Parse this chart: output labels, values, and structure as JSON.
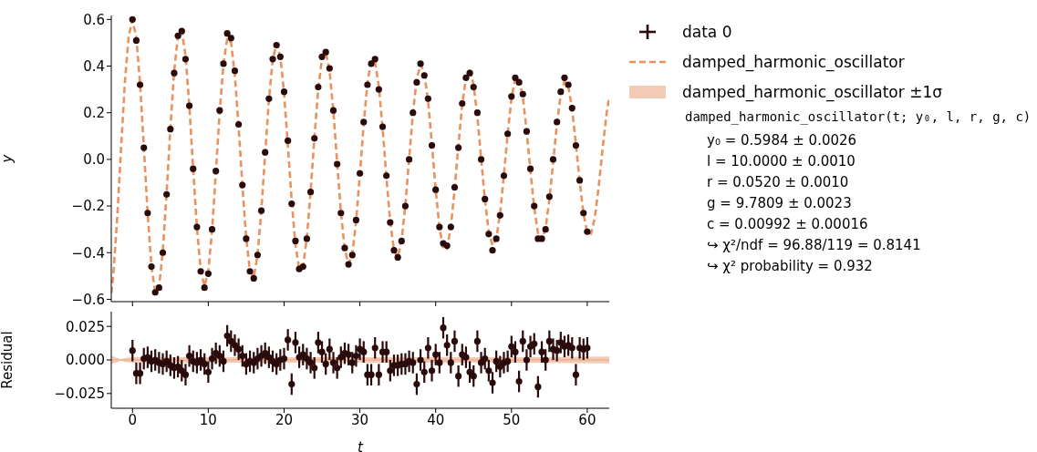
{
  "chart_data": [
    {
      "type": "scatter",
      "ylabel": "y",
      "xlim": [
        -2.8,
        62.9
      ],
      "ylim": [
        -0.61,
        0.617
      ],
      "xticks": [
        0,
        10,
        20,
        30,
        40,
        50,
        60
      ],
      "yticks": [
        {
          "value": -0.6,
          "label": "−0.6"
        },
        {
          "value": -0.4,
          "label": "−0.4"
        },
        {
          "value": -0.2,
          "label": "−0.2"
        },
        {
          "value": 0,
          "label": "0.0"
        },
        0.2,
        0.4,
        0.6
      ],
      "tick_labels": "y",
      "legend": "right",
      "x": [
        0,
        0.5,
        1,
        1.5,
        2,
        2.5,
        3,
        3.5,
        4,
        4.5,
        5,
        5.5,
        6,
        6.5,
        7,
        7.5,
        8,
        8.5,
        9,
        9.5,
        10,
        10.5,
        11,
        11.5,
        12,
        12.5,
        13,
        13.5,
        14,
        14.5,
        15,
        15.5,
        16,
        16.5,
        17,
        17.5,
        18,
        18.5,
        19,
        19.5,
        20,
        20.5,
        21,
        21.5,
        22,
        22.5,
        23,
        23.5,
        24,
        24.5,
        25,
        25.5,
        26,
        26.5,
        27,
        27.5,
        28,
        28.5,
        29,
        29.5,
        30,
        30.5,
        31,
        31.5,
        32,
        32.5,
        33,
        33.5,
        34,
        34.5,
        35,
        35.5,
        36,
        36.5,
        37,
        37.5,
        38,
        38.5,
        39,
        39.5,
        40,
        40.5,
        41,
        41.5,
        42,
        42.5,
        43,
        43.5,
        44,
        44.5,
        45,
        45.5,
        46,
        46.5,
        47,
        47.5,
        48,
        48.5,
        49,
        49.5,
        50,
        50.5,
        51,
        51.5,
        52,
        52.5,
        53,
        53.5,
        54,
        54.5,
        55,
        55.5,
        56,
        56.5,
        57,
        57.5,
        58,
        58.5,
        59,
        59.5,
        60
      ],
      "series": [
        {
          "name": "data 0",
          "marker": "circle",
          "color": "#2a0a0a",
          "values": [
            0.6,
            0.51,
            0.32,
            0.05,
            -0.23,
            -0.46,
            -0.57,
            -0.55,
            -0.4,
            -0.15,
            0.13,
            0.37,
            0.53,
            0.55,
            0.43,
            0.23,
            -0.04,
            -0.29,
            -0.48,
            -0.55,
            -0.49,
            -0.3,
            -0.05,
            0.21,
            0.41,
            0.54,
            0.52,
            0.38,
            0.15,
            -0.11,
            -0.34,
            -0.48,
            -0.51,
            -0.41,
            -0.22,
            0.03,
            0.26,
            0.43,
            0.49,
            0.44,
            0.29,
            0.08,
            -0.19,
            -0.35,
            -0.47,
            -0.46,
            -0.34,
            -0.14,
            0.09,
            0.31,
            0.44,
            0.46,
            0.39,
            0.21,
            -0.02,
            -0.23,
            -0.38,
            -0.45,
            -0.41,
            -0.26,
            -0.06,
            0.16,
            0.32,
            0.41,
            0.43,
            0.3,
            0.14,
            -0.07,
            -0.27,
            -0.39,
            -0.42,
            -0.35,
            -0.2,
            0.0,
            0.2,
            0.33,
            0.41,
            0.36,
            0.26,
            0.06,
            -0.13,
            -0.29,
            -0.36,
            -0.37,
            -0.29,
            -0.12,
            0.05,
            0.24,
            0.35,
            0.37,
            0.31,
            0.2,
            0.0,
            -0.17,
            -0.32,
            -0.39,
            -0.34,
            -0.24,
            -0.07,
            0.11,
            0.27,
            0.35,
            0.33,
            0.28,
            0.12,
            -0.04,
            -0.2,
            -0.34,
            -0.34,
            -0.3,
            -0.16,
            0.0,
            0.16,
            0.29,
            0.35,
            0.32,
            0.22,
            0.06,
            -0.09,
            -0.23,
            -0.31
          ]
        },
        {
          "name": "damped_harmonic_oscillator",
          "type": "line",
          "line_style": "dashed",
          "color": "#e8935e",
          "x": [
            -2.8,
            -2.5,
            -2,
            -1.5,
            -1,
            -0.5,
            0,
            0.5,
            1,
            1.5,
            2,
            2.5,
            3,
            3.5,
            4,
            4.5,
            5,
            5.5,
            6,
            6.5,
            7,
            7.5,
            8,
            8.5,
            9,
            9.5,
            10,
            10.5,
            11,
            11.5,
            12,
            12.5,
            13,
            13.5,
            14,
            14.5,
            15,
            15.5,
            16,
            16.5,
            17,
            17.5,
            18,
            18.5,
            19,
            19.5,
            20,
            20.5,
            21,
            21.5,
            22,
            22.5,
            23,
            23.5,
            24,
            24.5,
            25,
            25.5,
            26,
            26.5,
            27,
            27.5,
            28,
            28.5,
            29,
            29.5,
            30,
            30.5,
            31,
            31.5,
            32,
            32.5,
            33,
            33.5,
            34,
            34.5,
            35,
            35.5,
            36,
            36.5,
            37,
            37.5,
            38,
            38.5,
            39,
            39.5,
            40,
            40.5,
            41,
            41.5,
            42,
            42.5,
            43,
            43.5,
            44,
            44.5,
            45,
            45.5,
            46,
            46.5,
            47,
            47.5,
            48,
            48.5,
            49,
            49.5,
            50,
            50.5,
            51,
            51.5,
            52,
            52.5,
            53,
            53.5,
            54,
            54.5,
            55,
            55.5,
            56,
            56.5,
            57,
            57.5,
            58,
            58.5,
            59,
            59.5,
            60,
            60.5,
            61,
            61.5,
            62,
            62.5,
            62.9
          ],
          "values": [
            -0.574,
            -0.482,
            -0.243,
            0.052,
            0.332,
            0.529,
            0.598,
            0.524,
            0.325,
            0.05,
            -0.233,
            -0.458,
            -0.571,
            -0.548,
            -0.393,
            -0.145,
            0.134,
            0.379,
            0.53,
            0.553,
            0.445,
            0.23,
            -0.037,
            -0.292,
            -0.475,
            -0.544,
            -0.48,
            -0.303,
            -0.056,
            0.202,
            0.41,
            0.518,
            0.501,
            0.364,
            0.142,
            -0.112,
            -0.336,
            -0.479,
            -0.505,
            -0.411,
            -0.219,
            0.023,
            0.257,
            0.428,
            0.495,
            0.442,
            0.284,
            0.06,
            -0.176,
            -0.367,
            -0.47,
            -0.459,
            -0.337,
            -0.138,
            0.093,
            0.299,
            0.432,
            0.461,
            0.379,
            0.207,
            -0.012,
            -0.227,
            -0.385,
            -0.449,
            -0.407,
            -0.266,
            -0.064,
            0.151,
            0.328,
            0.425,
            0.419,
            0.313,
            0.133,
            -0.076,
            -0.266,
            -0.389,
            -0.419,
            -0.349,
            -0.196,
            0.003,
            0.198,
            0.344,
            0.407,
            0.371,
            0.248,
            0.066,
            -0.13,
            -0.292,
            -0.383,
            -0.383,
            -0.288,
            -0.129,
            0.061,
            0.235,
            0.35,
            0.381,
            0.321,
            0.184,
            0.005,
            -0.174,
            -0.309,
            -0.369,
            -0.341,
            -0.231,
            -0.067,
            0.111,
            0.261,
            0.347,
            0.349,
            0.268,
            0.123,
            -0.049,
            -0.208,
            -0.316,
            -0.347,
            -0.295,
            -0.174,
            -0.011,
            0.152,
            0.277,
            0.335,
            0.312,
            0.215,
            0.067,
            -0.095,
            -0.233,
            -0.314,
            -0.319,
            -0.248,
            -0.119,
            0.038,
            0.185,
            0.27
          ]
        }
      ],
      "annotations": [
        "damped_harmonic_oscillator(t; y₀, l, r, g, c)",
        "y₀ = 0.5984 ± 0.0026",
        "l = 10.0000 ± 0.0010",
        "r = 0.0520 ± 0.0010",
        "g = 9.7809 ± 0.0023",
        "c = 0.00992 ± 0.00016",
        "↪ χ²/ndf = 96.88/119 = 0.8141",
        "↪ χ² probability = 0.932"
      ]
    },
    {
      "type": "scatter",
      "xlabel": "t",
      "ylabel": "Residual",
      "xlim": [
        -2.8,
        62.9
      ],
      "ylim": [
        -0.036,
        0.036
      ],
      "xticks": [
        0,
        10,
        20,
        30,
        40,
        50,
        60
      ],
      "yticks": [
        {
          "value": -0.025,
          "label": "−0.025"
        },
        {
          "value": 0,
          "label": "0.000"
        },
        0.025
      ],
      "x": [
        0,
        0.5,
        1,
        1.5,
        2,
        2.5,
        3,
        3.5,
        4,
        4.5,
        5,
        5.5,
        6,
        6.5,
        7,
        7.5,
        8,
        8.5,
        9,
        9.5,
        10,
        10.5,
        11,
        11.5,
        12,
        12.5,
        13,
        13.5,
        14,
        14.5,
        15,
        15.5,
        16,
        16.5,
        17,
        17.5,
        18,
        18.5,
        19,
        19.5,
        20,
        20.5,
        21,
        21.5,
        22,
        22.5,
        23,
        23.5,
        24,
        24.5,
        25,
        25.5,
        26,
        26.5,
        27,
        27.5,
        28,
        28.5,
        29,
        29.5,
        30,
        30.5,
        31,
        31.5,
        32,
        32.5,
        33,
        33.5,
        34,
        34.5,
        35,
        35.5,
        36,
        36.5,
        37,
        37.5,
        38,
        38.5,
        39,
        39.5,
        40,
        40.5,
        41,
        41.5,
        42,
        42.5,
        43,
        43.5,
        44,
        44.5,
        45,
        45.5,
        46,
        46.5,
        47,
        47.5,
        48,
        48.5,
        49,
        49.5,
        50,
        50.5,
        51,
        51.5,
        52,
        52.5,
        53,
        53.5,
        54,
        54.5,
        55,
        55.5,
        56,
        56.5,
        57,
        57.5,
        58,
        58.5,
        59,
        59.5,
        60
      ],
      "series": [
        {
          "name": "damped_harmonic_oscillator ±1σ",
          "type": "line",
          "color": "#eba782",
          "x": [
            -2.8,
            -2,
            -1.5,
            -1,
            0,
            10,
            30,
            50,
            62.9
          ],
          "values": [
            0,
            0,
            0,
            0,
            0,
            0,
            0,
            0,
            0
          ],
          "lower": [
            -0.003,
            -0.0015,
            -0.0005,
            -0.0015,
            -0.002,
            -0.002,
            -0.002,
            -0.002,
            -0.0025
          ],
          "upper": [
            0.003,
            0.0015,
            0.0005,
            0.0015,
            0.002,
            0.002,
            0.002,
            0.002,
            0.0025
          ]
        },
        {
          "marker": "circle",
          "color": "#2a0a0a",
          "values": [
            0.007,
            -0.01,
            -0.01,
            0.001,
            0.002,
            -0.001,
            0.0,
            -0.002,
            -0.003,
            -0.001,
            -0.004,
            -0.006,
            -0.005,
            -0.008,
            -0.011,
            0.003,
            -0.001,
            -0.002,
            0.0,
            -0.003,
            -0.009,
            0.001,
            0.005,
            0.003,
            -0.001,
            0.018,
            0.014,
            0.011,
            0.008,
            0.003,
            -0.003,
            -0.001,
            -0.002,
            0.001,
            0.003,
            0.005,
            0.002,
            -0.001,
            -0.003,
            0.0,
            0.001,
            0.015,
            -0.018,
            0.013,
            0.002,
            0.004,
            0.001,
            -0.002,
            -0.006,
            0.013,
            0.006,
            -0.003,
            0.008,
            -0.002,
            -0.006,
            0.002,
            0.005,
            0.004,
            -0.002,
            0.003,
            0.008,
            0.006,
            -0.011,
            -0.011,
            0.009,
            -0.011,
            0.006,
            0.006,
            -0.008,
            -0.004,
            -0.004,
            -0.003,
            -0.003,
            -0.001,
            -0.002,
            -0.018,
            0.0,
            -0.009,
            0.009,
            -0.008,
            0.004,
            -0.002,
            0.024,
            0.011,
            -0.002,
            0.014,
            -0.012,
            0.004,
            0.002,
            -0.009,
            -0.012,
            0.014,
            -0.002,
            0.001,
            -0.008,
            -0.017,
            -0.001,
            -0.005,
            -0.002,
            -0.001,
            0.01,
            0.006,
            -0.016,
            0.014,
            0.0,
            0.01,
            0.012,
            -0.02,
            0.006,
            0.0,
            0.014,
            0.008,
            0.007,
            0.013,
            0.01,
            0.011,
            0.009,
            -0.011,
            0.009,
            0.008,
            0.009
          ],
          "errors": [
            0.008,
            0.008,
            0.008,
            0.008,
            0.008,
            0.008,
            0.008,
            0.008,
            0.008,
            0.008,
            0.008,
            0.008,
            0.008,
            0.008,
            0.008,
            0.008,
            0.008,
            0.008,
            0.008,
            0.008,
            0.008,
            0.008,
            0.008,
            0.008,
            0.008,
            0.008,
            0.008,
            0.008,
            0.008,
            0.008,
            0.008,
            0.008,
            0.008,
            0.008,
            0.008,
            0.008,
            0.008,
            0.008,
            0.008,
            0.008,
            0.008,
            0.008,
            0.008,
            0.008,
            0.008,
            0.008,
            0.008,
            0.008,
            0.008,
            0.008,
            0.008,
            0.008,
            0.008,
            0.008,
            0.008,
            0.008,
            0.008,
            0.008,
            0.008,
            0.008,
            0.008,
            0.008,
            0.008,
            0.008,
            0.008,
            0.008,
            0.008,
            0.008,
            0.008,
            0.008,
            0.008,
            0.008,
            0.008,
            0.008,
            0.008,
            0.008,
            0.008,
            0.008,
            0.008,
            0.008,
            0.008,
            0.008,
            0.008,
            0.008,
            0.008,
            0.008,
            0.008,
            0.008,
            0.008,
            0.008,
            0.008,
            0.008,
            0.008,
            0.008,
            0.008,
            0.008,
            0.008,
            0.008,
            0.008,
            0.008,
            0.008,
            0.008,
            0.008,
            0.008,
            0.008,
            0.008,
            0.008,
            0.008,
            0.008,
            0.008,
            0.008,
            0.008,
            0.008,
            0.008,
            0.008,
            0.008,
            0.008,
            0.008,
            0.008,
            0.008,
            0.008
          ]
        }
      ]
    }
  ]
}
